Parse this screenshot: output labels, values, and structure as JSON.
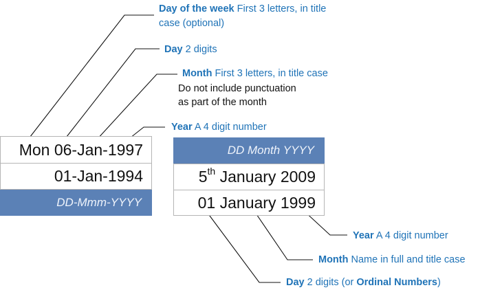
{
  "left_table": {
    "rows": [
      "Mon 06-Jan-1997",
      "01-Jan-1994"
    ],
    "format": "DD-Mmm-YYYY"
  },
  "right_table": {
    "format": "DD Month YYYY",
    "row1_day": "5",
    "row1_suffix": "th",
    "row1_rest": " January 2009",
    "row2": "01 January 1999"
  },
  "annotations": {
    "day_of_week": {
      "label": "Day of the week",
      "text": " First 3 letters, in title",
      "text2": "case (optional)"
    },
    "day": {
      "label": "Day",
      "text": " 2 digits"
    },
    "month": {
      "label": "Month",
      "text": " First 3 letters, in title case",
      "note1": "Do not include punctuation",
      "note2": "as part of the month"
    },
    "year_top": {
      "label": "Year",
      "text": " A 4 digit number"
    },
    "year_bottom": {
      "label": "Year",
      "text": " A 4 digit number"
    },
    "month_bottom": {
      "label": "Month",
      "text": " Name in full and title case"
    },
    "day_bottom": {
      "label": "Day",
      "text": " 2 digits (or ",
      "label2": "Ordinal Numbers",
      "text2": ")"
    }
  },
  "colors": {
    "accent": "#1f73b7",
    "header_fill": "#5b81b6",
    "line": "#111111",
    "border": "#b5b5b5"
  }
}
